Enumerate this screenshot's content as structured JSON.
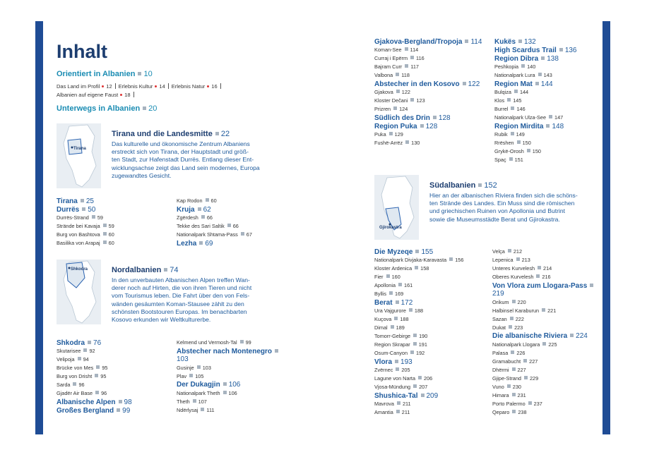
{
  "title": "Inhalt",
  "intro": {
    "heading": {
      "label": "Orientiert in Albanien",
      "page": 10
    },
    "items": [
      {
        "label": "Das Land im Profil",
        "page": 12
      },
      {
        "label": "Erlebnis Kultur",
        "page": 14
      },
      {
        "label": "Erlebnis Natur",
        "page": 16
      },
      {
        "label": "Albanien auf eigene Faust",
        "page": 18
      }
    ]
  },
  "part": {
    "label": "Unterwegs in Albanien",
    "page": 20
  },
  "regions": [
    {
      "map_label": "Tirana",
      "title": "Tirana und die Landesmitte",
      "page": 22,
      "text": [
        "Das kulturelle und ökonomische Zentrum Albaniens",
        "erstreckt sich von Tirana, der Hauptstadt und größ-",
        "ten Stadt, zur Hafenstadt Durrës. Entlang dieser Ent-",
        "wicklungsachse zeigt das Land sein modernes, Europa",
        "zugewandtes Gesicht."
      ],
      "columns": [
        [
          {
            "label": "Tirana",
            "page": 25
          },
          {
            "label": "Durrës",
            "page": 50,
            "items": [
              {
                "label": "Durrës-Strand",
                "page": 59
              },
              {
                "label": "Strände bei Kavaja",
                "page": 59
              },
              {
                "label": "Burg von Bashtova",
                "page": 60
              },
              {
                "label": "Basilika von Arapaj",
                "page": 60
              }
            ]
          }
        ],
        [
          {
            "items": [
              {
                "label": "Kap Rodon",
                "page": 60
              }
            ]
          },
          {
            "label": "Kruja",
            "page": 62,
            "items": [
              {
                "label": "Zgërdesh",
                "page": 66
              },
              {
                "label": "Tekke des Sari Saltik",
                "page": 66
              },
              {
                "label": "Nationalpark Shtama-Pass",
                "page": 67
              }
            ]
          },
          {
            "label": "Lezha",
            "page": 69
          }
        ]
      ]
    },
    {
      "map_label": "Shkodra",
      "title": "Nordalbanien",
      "page": 74,
      "text": [
        "In den unverbauten Albanischen Alpen treffen Wan-",
        "derer noch auf Hirten, die von ihren Tieren und nicht",
        "vom Tourismus leben. Die Fahrt über den von Fels-",
        "wänden gesäumten Koman-Stausee zählt zu den",
        "schönsten Bootstouren Europas. Im benachbarten",
        "Kosovo erkunden wir Weltkulturerbe."
      ],
      "columns": [
        [
          {
            "label": "Shkodra",
            "page": 76,
            "items": [
              {
                "label": "Skutarisee",
                "page": 92
              },
              {
                "label": "Velipoja",
                "page": 94
              },
              {
                "label": "Brücke von Mes",
                "page": 95
              },
              {
                "label": "Burg von Drisht",
                "page": 95
              },
              {
                "label": "Sarda",
                "page": 96
              },
              {
                "label": "Gjadër Air Base",
                "page": 96
              }
            ]
          },
          {
            "label": "Albanische Alpen",
            "page": 98
          },
          {
            "label": "Großes Bergland",
            "page": 99
          }
        ],
        [
          {
            "items": [
              {
                "label": "Kelmend und Vermosh-Tal",
                "page": 99
              }
            ]
          },
          {
            "label": "Abstecher nach Montenegro",
            "page": 103,
            "items": [
              {
                "label": "Gusinje",
                "page": 103
              },
              {
                "label": "Plav",
                "page": 105
              }
            ]
          },
          {
            "label": "Der Dukagjin",
            "page": 106,
            "items": [
              {
                "label": "Nationalpark Theth",
                "page": 106
              },
              {
                "label": "Theth",
                "page": 107
              },
              {
                "label": "Ndërlysaj",
                "page": 111
              }
            ]
          }
        ]
      ],
      "continued": [
        [
          {
            "label": "Gjakova-Bergland/Tropoja",
            "page": 114,
            "items": [
              {
                "label": "Koman-See",
                "page": 114
              },
              {
                "label": "Curraj i Epërm",
                "page": 116
              },
              {
                "label": "Bajram Curr",
                "page": 117
              },
              {
                "label": "Valbona",
                "page": 118
              }
            ]
          },
          {
            "label": "Abstecher in den Kosovo",
            "page": 122,
            "items": [
              {
                "label": "Gjakova",
                "page": 122
              },
              {
                "label": "Kloster Dečani",
                "page": 123
              },
              {
                "label": "Prizren",
                "page": 124
              }
            ]
          },
          {
            "label": "Südlich des Drin",
            "page": 128
          },
          {
            "label": "Region Puka",
            "page": 128,
            "items": [
              {
                "label": "Puka",
                "page": 129
              },
              {
                "label": "Fushë-Arrëz",
                "page": 130
              }
            ]
          }
        ],
        [
          {
            "label": "Kukës",
            "page": 132
          },
          {
            "label": "High Scardus Trail",
            "page": 136
          },
          {
            "label": "Region Dibra",
            "page": 138,
            "items": [
              {
                "label": "Peshkopia",
                "page": 140
              },
              {
                "label": "Nationalpark Lura",
                "page": 143
              }
            ]
          },
          {
            "label": "Region Mat",
            "page": 144,
            "items": [
              {
                "label": "Bulqiza",
                "page": 144
              },
              {
                "label": "Klos",
                "page": 145
              },
              {
                "label": "Burrel",
                "page": 146
              },
              {
                "label": "Nationalpark Ulza-See",
                "page": 147
              }
            ]
          },
          {
            "label": "Region Mirdita",
            "page": 148,
            "items": [
              {
                "label": "Rubik",
                "page": 149
              },
              {
                "label": "Rrëshen",
                "page": 150
              },
              {
                "label": "Grykë-Orosh",
                "page": 150
              },
              {
                "label": "Spaç",
                "page": 151
              }
            ]
          }
        ]
      ]
    },
    {
      "map_label": "Gjirokastra",
      "title": "Südalbanien",
      "page": 152,
      "text": [
        "Hier an der albanischen Riviera finden sich die schöns-",
        "ten Strände des Landes. Ein Muss sind die römischen",
        "und griechischen Ruinen von Apollonia und Butrint",
        "sowie die Museumsstädte Berat und Gjirokastra."
      ],
      "columns": [
        [
          {
            "label": "Die Myzeqe",
            "page": 155,
            "items": [
              {
                "label": "Nationalpark Divjaka-Karavasta",
                "page": 156
              },
              {
                "label": "Kloster Ardenica",
                "page": 158
              },
              {
                "label": "Fier",
                "page": 160
              },
              {
                "label": "Apollonia",
                "page": 161
              },
              {
                "label": "Byllis",
                "page": 169
              }
            ]
          },
          {
            "label": "Berat",
            "page": 172,
            "items": [
              {
                "label": "Ura Vajgurore",
                "page": 188
              },
              {
                "label": "Kuçova",
                "page": 188
              },
              {
                "label": "Dimal",
                "page": 189
              },
              {
                "label": "Tomorr-Gebirge",
                "page": 190
              },
              {
                "label": "Region Skrapar",
                "page": 191
              },
              {
                "label": "Osum-Canyon",
                "page": 192
              }
            ]
          },
          {
            "label": "Vlora",
            "page": 193,
            "items": [
              {
                "label": "Zvërnec",
                "page": 205
              },
              {
                "label": "Lagune von Narta",
                "page": 206
              },
              {
                "label": "Vjosa-Mündung",
                "page": 207
              }
            ]
          },
          {
            "label": "Shushica-Tal",
            "page": 209,
            "items": [
              {
                "label": "Mavrova",
                "page": 211
              },
              {
                "label": "Amantia",
                "page": 211
              }
            ]
          }
        ],
        [
          {
            "items": [
              {
                "label": "Velça",
                "page": 212
              },
              {
                "label": "Lepenica",
                "page": 213
              },
              {
                "label": "Unteres Kurvelesh",
                "page": 214
              },
              {
                "label": "Oberes Kurvelesh",
                "page": 216
              }
            ]
          },
          {
            "label": "Von Vlora zum Llogara-Pass",
            "page": 219,
            "items": [
              {
                "label": "Orikum",
                "page": 220
              },
              {
                "label": "Halbinsel Karaburun",
                "page": 221
              },
              {
                "label": "Sazan",
                "page": 222
              },
              {
                "label": "Dukat",
                "page": 223
              }
            ]
          },
          {
            "label": "Die albanische Riviera",
            "page": 224,
            "items": [
              {
                "label": "Nationalpark Llogara",
                "page": 225
              },
              {
                "label": "Palasa",
                "page": 226
              },
              {
                "label": "Gramabucht",
                "page": 227
              },
              {
                "label": "Dhërmi",
                "page": 227
              },
              {
                "label": "Gjipe-Strand",
                "page": 229
              },
              {
                "label": "Vuno",
                "page": 230
              },
              {
                "label": "Himara",
                "page": 231
              },
              {
                "label": "Porto Palermo",
                "page": 237
              },
              {
                "label": "Qeparo",
                "page": 238
              }
            ]
          }
        ]
      ]
    }
  ]
}
